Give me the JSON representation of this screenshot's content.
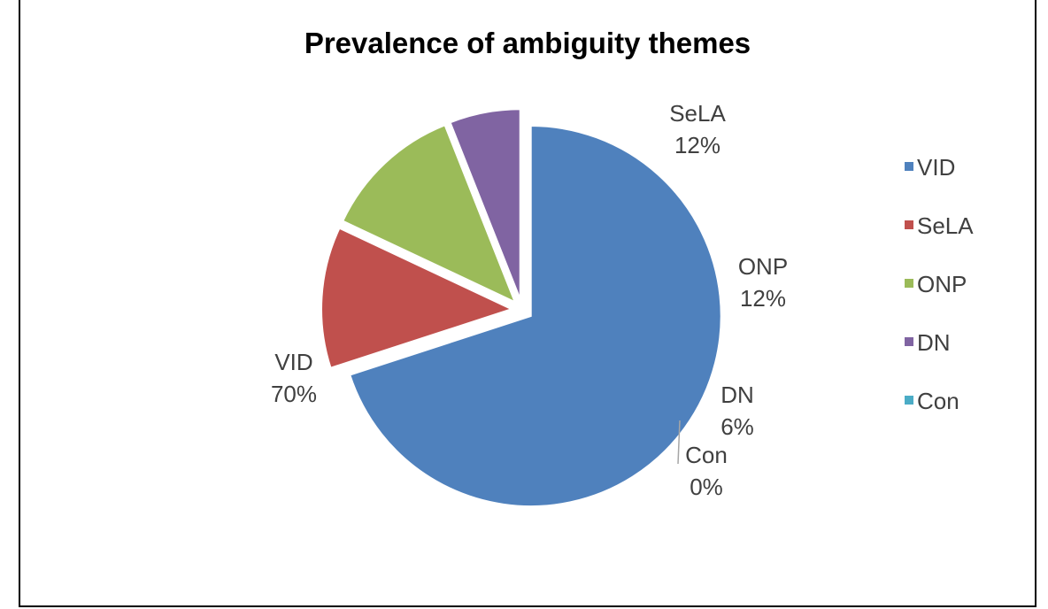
{
  "chart_data": {
    "type": "pie",
    "title": "Prevalence of ambiguity themes",
    "categories": [
      "VID",
      "SeLA",
      "ONP",
      "DN",
      "Con"
    ],
    "values": [
      70,
      12,
      12,
      6,
      0
    ],
    "labels": [
      "70%",
      "12%",
      "12%",
      "6%",
      "0%"
    ],
    "colors": [
      "#4F81BD",
      "#C0504D",
      "#9BBB59",
      "#8064A2",
      "#4BACC6"
    ],
    "exploded": true,
    "legend_position": "right"
  }
}
